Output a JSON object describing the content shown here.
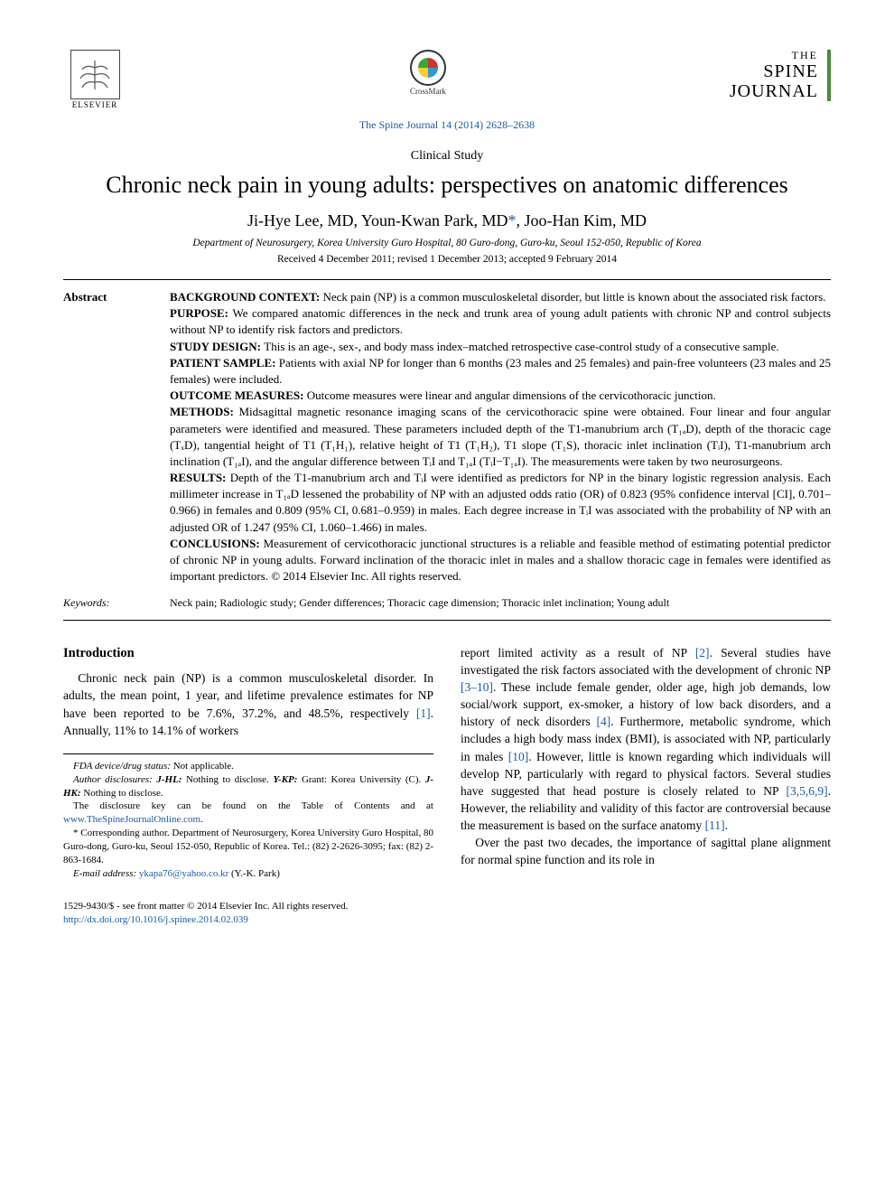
{
  "header": {
    "publisher_name": "ELSEVIER",
    "crossmark_label": "CrossMark",
    "journal_logo_small": "THE",
    "journal_logo_line1": "SPINE",
    "journal_logo_line2": "JOURNAL",
    "citation": "The Spine Journal 14 (2014) 2628–2638"
  },
  "article": {
    "type": "Clinical Study",
    "title": "Chronic neck pain in young adults: perspectives on anatomic differences",
    "authors_html": "Ji-Hye Lee, MD, Youn-Kwan Park, MD*, Joo-Han Kim, MD",
    "affiliation": "Department of Neurosurgery, Korea University Guro Hospital, 80 Guro-dong, Guro-ku, Seoul 152-050, Republic of Korea",
    "dates": "Received 4 December 2011; revised 1 December 2013; accepted 9 February 2014"
  },
  "abstract": {
    "label": "Abstract",
    "sections": [
      {
        "head": "BACKGROUND CONTEXT:",
        "text": "Neck pain (NP) is a common musculoskeletal disorder, but little is known about the associated risk factors."
      },
      {
        "head": "PURPOSE:",
        "text": "We compared anatomic differences in the neck and trunk area of young adult patients with chronic NP and control subjects without NP to identify risk factors and predictors."
      },
      {
        "head": "STUDY DESIGN:",
        "text": "This is an age-, sex-, and body mass index–matched retrospective case-control study of a consecutive sample."
      },
      {
        "head": "PATIENT SAMPLE:",
        "text": "Patients with axial NP for longer than 6 months (23 males and 25 females) and pain-free volunteers (23 males and 25 females) were included."
      },
      {
        "head": "OUTCOME MEASURES:",
        "text": "Outcome measures were linear and angular dimensions of the cervicothoracic junction."
      },
      {
        "head": "METHODS:",
        "text": "Midsagittal magnetic resonance imaging scans of the cervicothoracic spine were obtained. Four linear and four angular parameters were identified and measured. These parameters included depth of the T1-manubrium arch (T₁ₐD), depth of the thoracic cage (TₓD), tangential height of T1 (T₁H₁), relative height of T1 (T₁H₂), T1 slope (T₁S), thoracic inlet inclination (TᵢI), T1-manubrium arch inclination (T₁ₐI), and the angular difference between TᵢI and T₁ₐI (TᵢI−T₁ₐI). The measurements were taken by two neurosurgeons."
      },
      {
        "head": "RESULTS:",
        "text": "Depth of the T1-manubrium arch and TᵢI were identified as predictors for NP in the binary logistic regression analysis. Each millimeter increase in T₁ₐD lessened the probability of NP with an adjusted odds ratio (OR) of 0.823 (95% confidence interval [CI], 0.701–0.966) in females and 0.809 (95% CI, 0.681–0.959) in males. Each degree increase in TᵢI was associated with the probability of NP with an adjusted OR of 1.247 (95% CI, 1.060–1.466) in males."
      },
      {
        "head": "CONCLUSIONS:",
        "text": "Measurement of cervicothoracic junctional structures is a reliable and feasible method of estimating potential predictor of chronic NP in young adults. Forward inclination of the thoracic inlet in males and a shallow thoracic cage in females were identified as important predictors.  © 2014 Elsevier Inc. All rights reserved."
      }
    ]
  },
  "keywords": {
    "label": "Keywords:",
    "text": "Neck pain; Radiologic study; Gender differences; Thoracic cage dimension; Thoracic inlet inclination; Young adult"
  },
  "body": {
    "section_heading": "Introduction",
    "left_paragraphs": [
      "Chronic neck pain (NP) is a common musculoskeletal disorder. In adults, the mean point, 1 year, and lifetime prevalence estimates for NP have been reported to be 7.6%, 37.2%, and 48.5%, respectively [1]. Annually, 11% to 14.1% of workers"
    ],
    "right_paragraphs": [
      "report limited activity as a result of NP [2]. Several studies have investigated the risk factors associated with the development of chronic NP [3–10]. These include female gender, older age, high job demands, low social/work support, ex-smoker, a history of low back disorders, and a history of neck disorders [4]. Furthermore, metabolic syndrome, which includes a high body mass index (BMI), is associated with NP, particularly in males [10]. However, little is known regarding which individuals will develop NP, particularly with regard to physical factors. Several studies have suggested that head posture is closely related to NP [3,5,6,9]. However, the reliability and validity of this factor are controversial because the measurement is based on the surface anatomy [11].",
      "Over the past two decades, the importance of sagittal plane alignment for normal spine function and its role in"
    ]
  },
  "footnotes": {
    "lines": [
      "FDA device/drug status: Not applicable.",
      "Author disclosures: J-HL: Nothing to disclose. Y-KP: Grant: Korea University (C). J-HK: Nothing to disclose.",
      "The disclosure key can be found on the Table of Contents and at www.TheSpineJournalOnline.com.",
      "* Corresponding author. Department of Neurosurgery, Korea University Guro Hospital, 80 Guro-dong, Guro-ku, Seoul 152-050, Republic of Korea. Tel.: (82) 2-2626-3095; fax: (82) 2-863-1684.",
      "E-mail address: ykapa76@yahoo.co.kr (Y.-K. Park)"
    ],
    "disclosure_link_text": "www.TheSpineJournalOnline.com",
    "email_text": "ykapa76@yahoo.co.kr"
  },
  "footer": {
    "left": "1529-9430/$ - see front matter © 2014 Elsevier Inc. All rights reserved.",
    "doi": "http://dx.doi.org/10.1016/j.spinee.2014.02.039"
  },
  "colors": {
    "link": "#1a5aa8",
    "rule": "#000000",
    "journal_accent": "#4a8a3a"
  }
}
